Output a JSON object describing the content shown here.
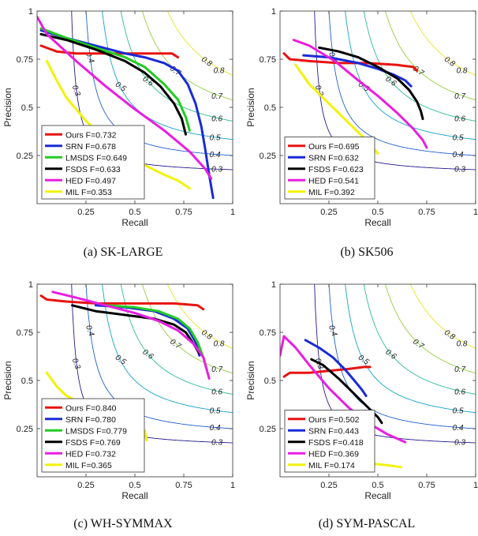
{
  "chart_data": [
    {
      "type": "line",
      "caption": "(a)  SK-LARGE",
      "xlabel": "Recall",
      "ylabel": "Precision",
      "xlim": [
        0,
        1
      ],
      "ylim": [
        0,
        1
      ],
      "xticks": [
        "0.25",
        "0.5",
        "0.75",
        "1"
      ],
      "yticks": [
        "0.25",
        "0.5",
        "0.75",
        "1"
      ],
      "iso_f_labels": [
        "0.3",
        "0.4",
        "0.5",
        "0.6",
        "0.7",
        "0.8"
      ],
      "legend_position": "bottom-left",
      "series": [
        {
          "name": "Ours",
          "f": "F=0.732",
          "color": "#e8130f",
          "points": [
            [
              0.02,
              0.82
            ],
            [
              0.1,
              0.79
            ],
            [
              0.2,
              0.78
            ],
            [
              0.35,
              0.78
            ],
            [
              0.5,
              0.78
            ],
            [
              0.6,
              0.78
            ],
            [
              0.69,
              0.78
            ],
            [
              0.72,
              0.76
            ]
          ]
        },
        {
          "name": "SRN",
          "f": "F=0.678",
          "color": "#1a2bd6",
          "points": [
            [
              0.02,
              0.9
            ],
            [
              0.15,
              0.86
            ],
            [
              0.3,
              0.82
            ],
            [
              0.45,
              0.78
            ],
            [
              0.55,
              0.76
            ],
            [
              0.65,
              0.73
            ],
            [
              0.72,
              0.69
            ],
            [
              0.77,
              0.62
            ],
            [
              0.81,
              0.52
            ],
            [
              0.84,
              0.4
            ],
            [
              0.86,
              0.28
            ],
            [
              0.88,
              0.15
            ],
            [
              0.9,
              0.03
            ]
          ]
        },
        {
          "name": "LMSDS",
          "f": "F=0.649",
          "color": "#22cc22",
          "points": [
            [
              0.02,
              0.91
            ],
            [
              0.15,
              0.86
            ],
            [
              0.3,
              0.81
            ],
            [
              0.45,
              0.76
            ],
            [
              0.55,
              0.71
            ],
            [
              0.65,
              0.62
            ],
            [
              0.72,
              0.54
            ],
            [
              0.76,
              0.45
            ],
            [
              0.78,
              0.38
            ]
          ]
        },
        {
          "name": "FSDS",
          "f": "F=0.633",
          "color": "#000000",
          "points": [
            [
              0.02,
              0.88
            ],
            [
              0.15,
              0.85
            ],
            [
              0.3,
              0.8
            ],
            [
              0.45,
              0.74
            ],
            [
              0.55,
              0.68
            ],
            [
              0.63,
              0.61
            ],
            [
              0.7,
              0.52
            ],
            [
              0.74,
              0.44
            ],
            [
              0.76,
              0.36
            ]
          ]
        },
        {
          "name": "HED",
          "f": "F=0.497",
          "color": "#e81ee0",
          "points": [
            [
              0.0,
              0.97
            ],
            [
              0.05,
              0.88
            ],
            [
              0.2,
              0.74
            ],
            [
              0.35,
              0.61
            ],
            [
              0.5,
              0.49
            ],
            [
              0.65,
              0.38
            ],
            [
              0.78,
              0.27
            ],
            [
              0.86,
              0.18
            ],
            [
              0.89,
              0.13
            ]
          ]
        },
        {
          "name": "MIL",
          "f": "F=0.353",
          "color": "#f2f20a",
          "points": [
            [
              0.05,
              0.74
            ],
            [
              0.1,
              0.64
            ],
            [
              0.15,
              0.55
            ],
            [
              0.25,
              0.43
            ],
            [
              0.35,
              0.33
            ],
            [
              0.45,
              0.26
            ],
            [
              0.55,
              0.2
            ],
            [
              0.65,
              0.15
            ],
            [
              0.72,
              0.12
            ],
            [
              0.78,
              0.08
            ]
          ]
        }
      ]
    },
    {
      "type": "line",
      "caption": "(b)  SK506",
      "xlabel": "Recall",
      "ylabel": "Precision",
      "xlim": [
        0,
        1
      ],
      "ylim": [
        0,
        1
      ],
      "xticks": [
        "0.25",
        "0.5",
        "0.75",
        "1"
      ],
      "yticks": [
        "0.25",
        "0.5",
        "0.75",
        "1"
      ],
      "iso_f_labels": [
        "0.3",
        "0.4",
        "0.5",
        "0.6",
        "0.7",
        "0.8"
      ],
      "legend_position": "bottom-left",
      "series": [
        {
          "name": "Ours",
          "f": "F=0.695",
          "color": "#e8130f",
          "points": [
            [
              0.02,
              0.78
            ],
            [
              0.05,
              0.75
            ],
            [
              0.15,
              0.74
            ],
            [
              0.3,
              0.73
            ],
            [
              0.45,
              0.73
            ],
            [
              0.6,
              0.72
            ],
            [
              0.68,
              0.71
            ],
            [
              0.7,
              0.69
            ]
          ]
        },
        {
          "name": "SRN",
          "f": "F=0.632",
          "color": "#1a2bd6",
          "points": [
            [
              0.12,
              0.77
            ],
            [
              0.25,
              0.76
            ],
            [
              0.4,
              0.73
            ],
            [
              0.5,
              0.7
            ],
            [
              0.58,
              0.67
            ],
            [
              0.64,
              0.64
            ],
            [
              0.67,
              0.61
            ]
          ]
        },
        {
          "name": "FSDS",
          "f": "F=0.623",
          "color": "#000000",
          "points": [
            [
              0.2,
              0.81
            ],
            [
              0.3,
              0.79
            ],
            [
              0.4,
              0.76
            ],
            [
              0.5,
              0.71
            ],
            [
              0.6,
              0.65
            ],
            [
              0.66,
              0.59
            ],
            [
              0.7,
              0.53
            ],
            [
              0.72,
              0.48
            ],
            [
              0.73,
              0.44
            ]
          ]
        },
        {
          "name": "HED",
          "f": "F=0.541",
          "color": "#e81ee0",
          "points": [
            [
              0.07,
              0.85
            ],
            [
              0.15,
              0.82
            ],
            [
              0.28,
              0.74
            ],
            [
              0.4,
              0.64
            ],
            [
              0.5,
              0.56
            ],
            [
              0.6,
              0.47
            ],
            [
              0.68,
              0.39
            ],
            [
              0.73,
              0.33
            ],
            [
              0.75,
              0.29
            ]
          ]
        },
        {
          "name": "MIL",
          "f": "F=0.392",
          "color": "#f2f20a",
          "points": [
            [
              0.08,
              0.72
            ],
            [
              0.15,
              0.62
            ],
            [
              0.25,
              0.52
            ],
            [
              0.33,
              0.44
            ],
            [
              0.4,
              0.37
            ],
            [
              0.46,
              0.31
            ],
            [
              0.5,
              0.26
            ]
          ]
        }
      ]
    },
    {
      "type": "line",
      "caption": "(c)  WH-SYMMAX",
      "xlabel": "Recall",
      "ylabel": "Precision",
      "xlim": [
        0,
        1
      ],
      "ylim": [
        0,
        1
      ],
      "xticks": [
        "0.25",
        "0.5",
        "0.75",
        "1"
      ],
      "yticks": [
        "0.25",
        "0.5",
        "0.75",
        "1"
      ],
      "iso_f_labels": [
        "0.3",
        "0.4",
        "0.5",
        "0.6",
        "0.7",
        "0.8"
      ],
      "legend_position": "bottom-left",
      "series": [
        {
          "name": "Ours",
          "f": "F=0.840",
          "color": "#e8130f",
          "points": [
            [
              0.02,
              0.94
            ],
            [
              0.05,
              0.92
            ],
            [
              0.15,
              0.91
            ],
            [
              0.3,
              0.9
            ],
            [
              0.5,
              0.9
            ],
            [
              0.7,
              0.9
            ],
            [
              0.82,
              0.89
            ],
            [
              0.85,
              0.87
            ]
          ]
        },
        {
          "name": "SRN",
          "f": "F=0.780",
          "color": "#1a2bd6",
          "points": [
            [
              0.3,
              0.89
            ],
            [
              0.45,
              0.88
            ],
            [
              0.6,
              0.86
            ],
            [
              0.7,
              0.82
            ],
            [
              0.77,
              0.77
            ],
            [
              0.81,
              0.7
            ],
            [
              0.83,
              0.63
            ]
          ]
        },
        {
          "name": "LMSDS",
          "f": "F=0.779",
          "color": "#22cc22",
          "points": [
            [
              0.35,
              0.89
            ],
            [
              0.5,
              0.88
            ],
            [
              0.62,
              0.86
            ],
            [
              0.72,
              0.82
            ],
            [
              0.78,
              0.77
            ],
            [
              0.82,
              0.7
            ],
            [
              0.85,
              0.62
            ]
          ]
        },
        {
          "name": "FSDS",
          "f": "F=0.769",
          "color": "#000000",
          "points": [
            [
              0.18,
              0.89
            ],
            [
              0.3,
              0.86
            ],
            [
              0.45,
              0.84
            ],
            [
              0.6,
              0.82
            ],
            [
              0.7,
              0.79
            ],
            [
              0.76,
              0.75
            ],
            [
              0.8,
              0.69
            ],
            [
              0.83,
              0.64
            ]
          ]
        },
        {
          "name": "HED",
          "f": "F=0.732",
          "color": "#e81ee0",
          "points": [
            [
              0.08,
              0.96
            ],
            [
              0.2,
              0.93
            ],
            [
              0.35,
              0.89
            ],
            [
              0.5,
              0.85
            ],
            [
              0.62,
              0.81
            ],
            [
              0.72,
              0.76
            ],
            [
              0.8,
              0.69
            ],
            [
              0.85,
              0.62
            ],
            [
              0.88,
              0.51
            ]
          ]
        },
        {
          "name": "MIL",
          "f": "F=0.365",
          "color": "#f2f20a",
          "points": [
            [
              0.05,
              0.54
            ],
            [
              0.1,
              0.47
            ],
            [
              0.15,
              0.42
            ],
            [
              0.25,
              0.37
            ],
            [
              0.35,
              0.32
            ],
            [
              0.45,
              0.28
            ],
            [
              0.5,
              0.26
            ],
            [
              0.55,
              0.24
            ],
            [
              0.56,
              0.19
            ]
          ]
        }
      ]
    },
    {
      "type": "line",
      "caption": "(d)  SYM-PASCAL",
      "xlabel": "Recall",
      "ylabel": "Precision",
      "xlim": [
        0,
        1
      ],
      "ylim": [
        0,
        1
      ],
      "xticks": [
        "0.25",
        "0.5",
        "0.75",
        "1"
      ],
      "yticks": [
        "0.25",
        "0.5",
        "0.75",
        "1"
      ],
      "iso_f_labels": [
        "0.3",
        "0.4",
        "0.5",
        "0.6",
        "0.7",
        "0.8"
      ],
      "legend_position": "bottom-left",
      "series": [
        {
          "name": "Ours",
          "f": "F=0.502",
          "color": "#e8130f",
          "points": [
            [
              0.02,
              0.52
            ],
            [
              0.05,
              0.54
            ],
            [
              0.15,
              0.54
            ],
            [
              0.25,
              0.55
            ],
            [
              0.35,
              0.56
            ],
            [
              0.43,
              0.57
            ],
            [
              0.46,
              0.57
            ]
          ]
        },
        {
          "name": "SRN",
          "f": "F=0.443",
          "color": "#1a2bd6",
          "points": [
            [
              0.13,
              0.71
            ],
            [
              0.2,
              0.67
            ],
            [
              0.27,
              0.62
            ],
            [
              0.33,
              0.56
            ],
            [
              0.38,
              0.5
            ],
            [
              0.42,
              0.45
            ],
            [
              0.44,
              0.42
            ]
          ]
        },
        {
          "name": "FSDS",
          "f": "F=0.418",
          "color": "#000000",
          "points": [
            [
              0.16,
              0.61
            ],
            [
              0.22,
              0.58
            ],
            [
              0.3,
              0.51
            ],
            [
              0.38,
              0.43
            ],
            [
              0.45,
              0.36
            ],
            [
              0.5,
              0.31
            ],
            [
              0.52,
              0.28
            ]
          ]
        },
        {
          "name": "HED",
          "f": "F=0.369",
          "color": "#e81ee0",
          "points": [
            [
              0.0,
              0.63
            ],
            [
              0.02,
              0.73
            ],
            [
              0.08,
              0.67
            ],
            [
              0.15,
              0.58
            ],
            [
              0.25,
              0.46
            ],
            [
              0.35,
              0.36
            ],
            [
              0.45,
              0.28
            ],
            [
              0.55,
              0.22
            ],
            [
              0.64,
              0.18
            ]
          ]
        },
        {
          "name": "MIL",
          "f": "F=0.174",
          "color": "#f2f20a",
          "points": [
            [
              0.05,
              0.17
            ],
            [
              0.15,
              0.13
            ],
            [
              0.25,
              0.1
            ],
            [
              0.35,
              0.08
            ],
            [
              0.45,
              0.07
            ],
            [
              0.55,
              0.06
            ],
            [
              0.62,
              0.05
            ]
          ]
        }
      ]
    }
  ]
}
